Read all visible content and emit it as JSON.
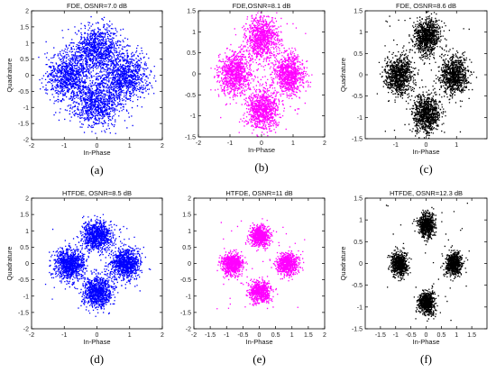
{
  "chart_data": [
    {
      "type": "scatter",
      "caption": "(a)",
      "title": "FDE, OSNR=7.0 dB",
      "xlabel": "In-Phase",
      "ylabel": "Quadrature",
      "xlim": [
        -2,
        2
      ],
      "ylim": [
        -2,
        2
      ],
      "xticks": [
        -2,
        -1,
        0,
        1,
        2
      ],
      "yticks": [
        -2,
        -1.5,
        -1,
        -0.5,
        0,
        0.5,
        1,
        1.5,
        2
      ],
      "color": "#0000ff",
      "constellation": [
        [
          0,
          0.85
        ],
        [
          0.85,
          0
        ],
        [
          0,
          -0.85
        ],
        [
          -0.85,
          0
        ]
      ],
      "spread": 0.36,
      "points_per_cluster": 900,
      "grid": false
    },
    {
      "type": "scatter",
      "caption": "(b)",
      "title": "FDE,OSNR=8.1 dB",
      "xlabel": "In-Phase",
      "ylabel": "",
      "xlim": [
        -2,
        2
      ],
      "ylim": [
        -1.5,
        1.5
      ],
      "xticks": [
        -2,
        -1,
        0,
        1,
        2
      ],
      "yticks": [
        -1.5,
        -1,
        -0.5,
        0,
        0.5,
        1,
        1.5
      ],
      "color": "#ff00ff",
      "constellation": [
        [
          0,
          0.85
        ],
        [
          0.85,
          0
        ],
        [
          0,
          -0.85
        ],
        [
          -0.85,
          0
        ]
      ],
      "spread": 0.25,
      "points_per_cluster": 900,
      "grid": false
    },
    {
      "type": "scatter",
      "caption": "(c)",
      "title": "FDE, OSNR=8.6 dB",
      "xlabel": "In-Phase",
      "ylabel": "Quadrature",
      "xlim": [
        -2,
        2
      ],
      "ylim": [
        -1.5,
        1.5
      ],
      "xticks": [
        -1,
        0,
        1
      ],
      "yticks": [
        -1.5,
        -1,
        -0.5,
        0,
        0.5,
        1,
        1.5
      ],
      "color": "#000000",
      "constellation": [
        [
          0,
          0.9
        ],
        [
          0.9,
          0
        ],
        [
          0,
          -0.9
        ],
        [
          -0.9,
          0
        ]
      ],
      "spread": 0.22,
      "points_per_cluster": 900,
      "grid": false
    },
    {
      "type": "scatter",
      "caption": "(d)",
      "title": "HTFDE, OSNR=8.5 dB",
      "xlabel": "In-Phase",
      "ylabel": "Quadrature",
      "xlim": [
        -2,
        2
      ],
      "ylim": [
        -2,
        2
      ],
      "xticks": [
        -2,
        -1,
        0,
        1,
        2
      ],
      "yticks": [
        -2,
        -1.5,
        -1,
        -0.5,
        0,
        0.5,
        1,
        1.5,
        2
      ],
      "color": "#0000ff",
      "constellation": [
        [
          0,
          0.85
        ],
        [
          0.85,
          0
        ],
        [
          0,
          -0.85
        ],
        [
          -0.85,
          0
        ]
      ],
      "spread": 0.23,
      "points_per_cluster": 900,
      "grid": false
    },
    {
      "type": "scatter",
      "caption": "(e)",
      "title": "HTFDE, OSNR=11 dB",
      "xlabel": "In-Phase",
      "ylabel": "",
      "xlim": [
        -2,
        2
      ],
      "ylim": [
        -2,
        2
      ],
      "xticks": [
        -2,
        -1.5,
        -1,
        -0.5,
        0,
        0.5,
        1,
        1.5,
        2
      ],
      "yticks": [
        -2,
        -1.5,
        -1,
        -0.5,
        0,
        0.5,
        1,
        1.5,
        2
      ],
      "color": "#ff00ff",
      "constellation": [
        [
          0,
          0.85
        ],
        [
          0.85,
          0
        ],
        [
          0,
          -0.85
        ],
        [
          -0.85,
          0
        ]
      ],
      "spread": 0.16,
      "points_per_cluster": 700,
      "grid": false
    },
    {
      "type": "scatter",
      "caption": "(f)",
      "title": "HTFDE, OSNR=12.3 dB",
      "xlabel": "In-Phase",
      "ylabel": "Quadrature",
      "xlim": [
        -2,
        2
      ],
      "ylim": [
        -1.5,
        1.5
      ],
      "xticks": [
        -1.5,
        -1,
        -0.5,
        0,
        0.5,
        1,
        1.5
      ],
      "yticks": [
        -1.5,
        -1,
        -0.5,
        0,
        0.5,
        1,
        1.5
      ],
      "color": "#000000",
      "constellation": [
        [
          0,
          0.9
        ],
        [
          0.9,
          0
        ],
        [
          0,
          -0.9
        ],
        [
          -0.9,
          0
        ]
      ],
      "spread": 0.13,
      "points_per_cluster": 700,
      "grid": false
    }
  ]
}
